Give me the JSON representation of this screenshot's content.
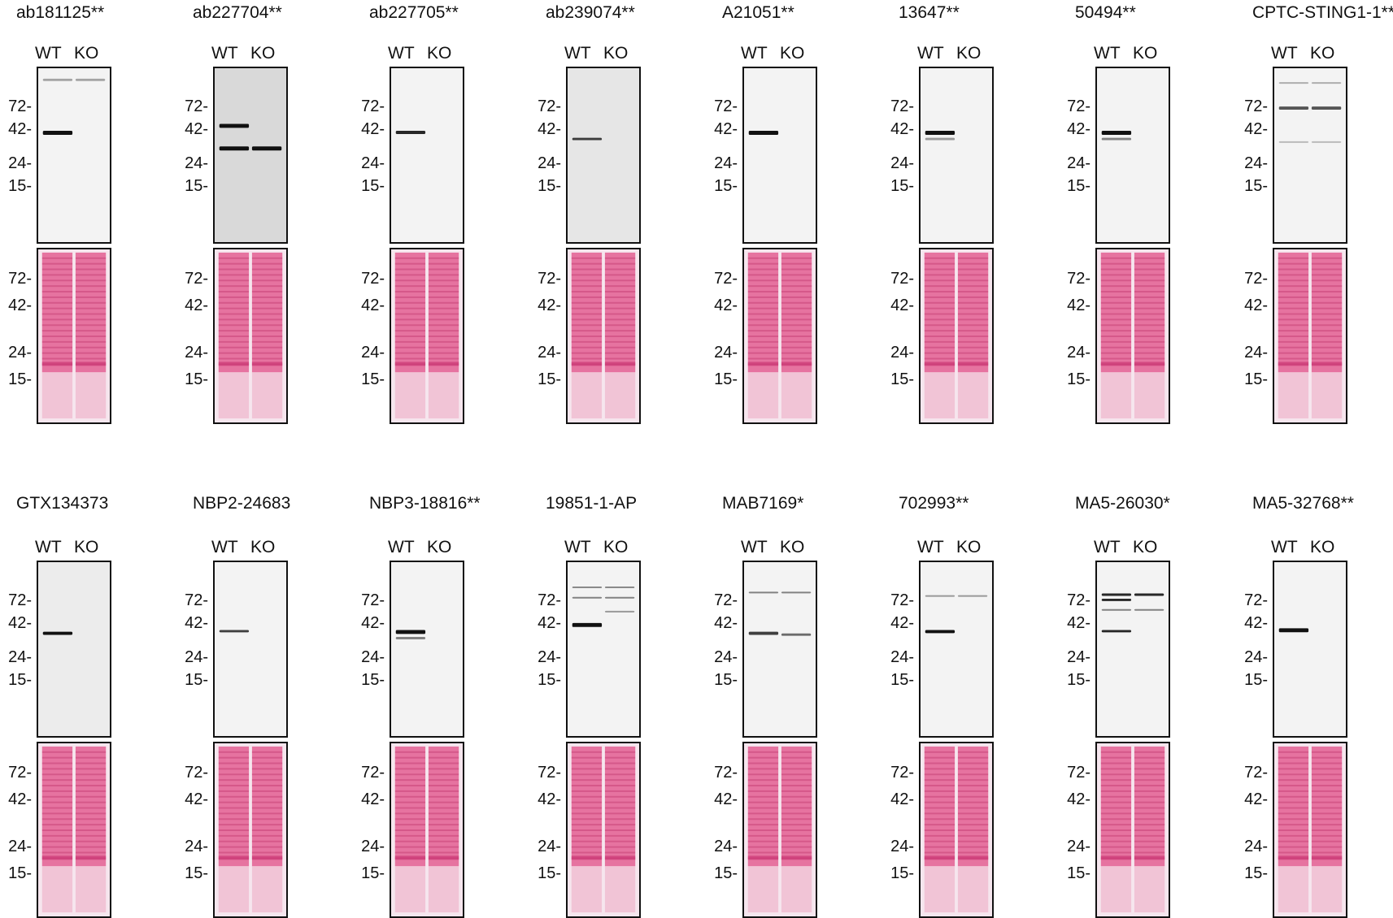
{
  "figure": {
    "lanes": [
      "WT",
      "KO"
    ],
    "marker_suffix": "-",
    "colors": {
      "ponceau": "#e04c85",
      "band": "#111111",
      "frame": "#111111"
    },
    "panels": [
      {
        "antibody": "ab181125**",
        "blot_markers": [
          "72",
          "42",
          "24",
          "15"
        ],
        "ponceau_markers": [
          "72",
          "42",
          "24",
          "15"
        ]
      },
      {
        "antibody": "ab227704**",
        "blot_markers": [
          "72",
          "42",
          "24",
          "15"
        ],
        "ponceau_markers": [
          "72",
          "42",
          "24",
          "15"
        ]
      },
      {
        "antibody": "ab227705**",
        "blot_markers": [
          "72",
          "42",
          "24",
          "15"
        ],
        "ponceau_markers": [
          "72",
          "42",
          "24",
          "15"
        ]
      },
      {
        "antibody": "ab239074**",
        "blot_markers": [
          "72",
          "42",
          "24",
          "15"
        ],
        "ponceau_markers": [
          "72",
          "42",
          "24",
          "15"
        ]
      },
      {
        "antibody": "A21051**",
        "blot_markers": [
          "72",
          "42",
          "24",
          "15"
        ],
        "ponceau_markers": [
          "72",
          "42",
          "24",
          "15"
        ]
      },
      {
        "antibody": "13647**",
        "blot_markers": [
          "72",
          "42",
          "24",
          "15"
        ],
        "ponceau_markers": [
          "72",
          "42",
          "24",
          "15"
        ]
      },
      {
        "antibody": "50494**",
        "blot_markers": [
          "72",
          "42",
          "24",
          "15"
        ],
        "ponceau_markers": [
          "72",
          "42",
          "24",
          "15"
        ]
      },
      {
        "antibody": "CPTC-STING1-1**",
        "blot_markers": [
          "72",
          "42",
          "24",
          "15"
        ],
        "ponceau_markers": [
          "72",
          "42",
          "24",
          "15"
        ]
      },
      {
        "antibody": "GTX134373",
        "blot_markers": [
          "72",
          "42",
          "24",
          "15"
        ],
        "ponceau_markers": [
          "72",
          "42",
          "24",
          "15"
        ]
      },
      {
        "antibody": "NBP2-24683",
        "blot_markers": [
          "72",
          "42",
          "24",
          "15"
        ],
        "ponceau_markers": [
          "72",
          "42",
          "24",
          "15"
        ]
      },
      {
        "antibody": "NBP3-18816**",
        "blot_markers": [
          "72",
          "42",
          "24",
          "15"
        ],
        "ponceau_markers": [
          "72",
          "42",
          "24",
          "15"
        ]
      },
      {
        "antibody": "19851-1-AP",
        "blot_markers": [
          "72",
          "42",
          "24",
          "15"
        ],
        "ponceau_markers": [
          "72",
          "42",
          "24",
          "15"
        ]
      },
      {
        "antibody": "MAB7169*",
        "blot_markers": [
          "72",
          "42",
          "24",
          "15"
        ],
        "ponceau_markers": [
          "72",
          "42",
          "24",
          "15"
        ]
      },
      {
        "antibody": "702993**",
        "blot_markers": [
          "72",
          "42",
          "24",
          "15"
        ],
        "ponceau_markers": [
          "72",
          "42",
          "24",
          "15"
        ]
      },
      {
        "antibody": "MA5-26030*",
        "blot_markers": [
          "72",
          "42",
          "24",
          "15"
        ],
        "ponceau_markers": [
          "72",
          "42",
          "24",
          "15"
        ]
      },
      {
        "antibody": "MA5-32768**",
        "blot_markers": [
          "72",
          "42",
          "24",
          "15"
        ],
        "ponceau_markers": [
          "72",
          "42",
          "24",
          "15"
        ]
      }
    ]
  }
}
